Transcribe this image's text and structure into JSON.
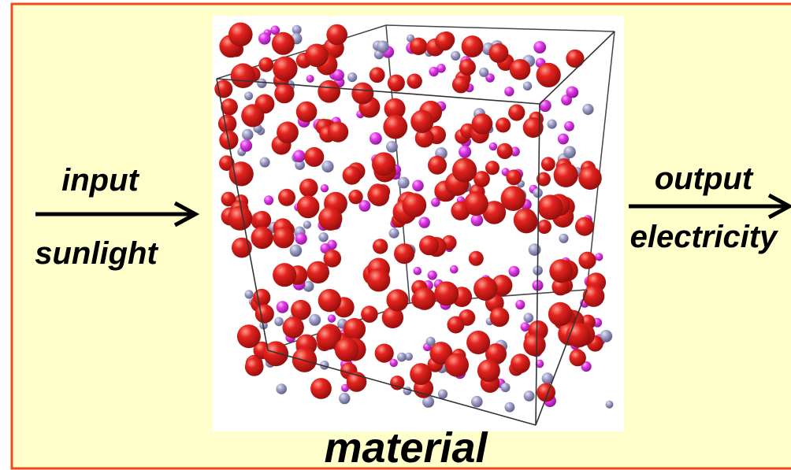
{
  "labels": {
    "input": "input",
    "sunlight": "sunlight",
    "output": "output",
    "electricity": "electricity",
    "material": "material"
  }
}
